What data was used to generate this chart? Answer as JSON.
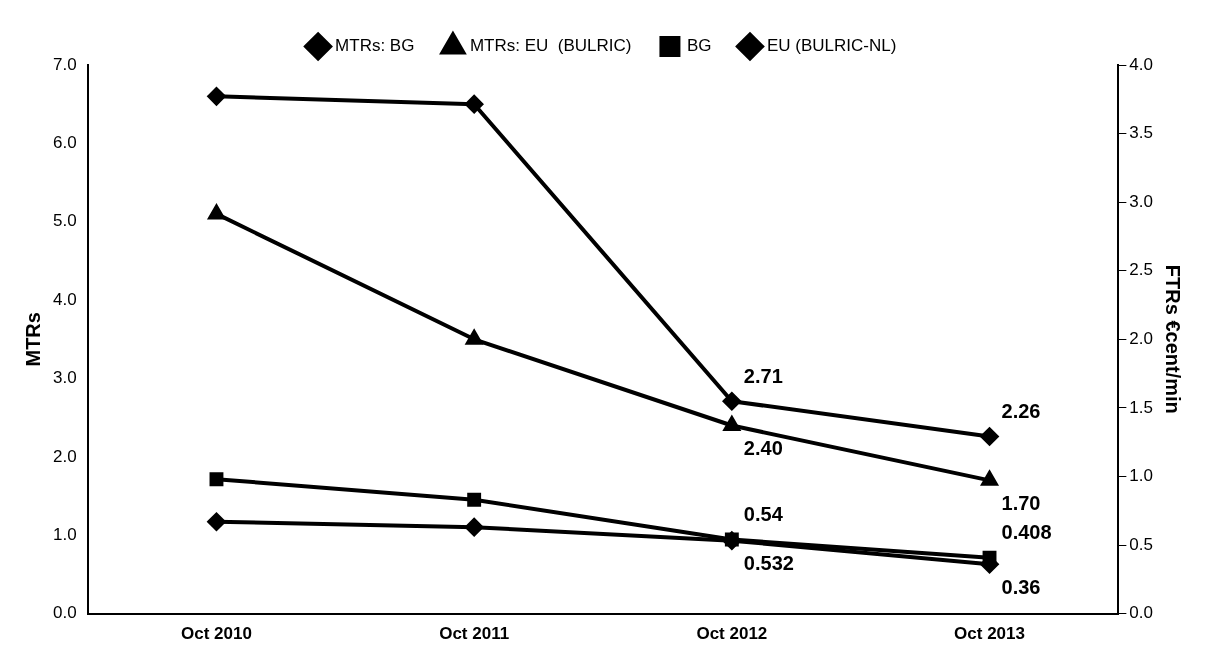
{
  "chart_data": {
    "type": "line",
    "categories": [
      "Oct 2010",
      "Oct 2011",
      "Oct 2012",
      "Oct 2013"
    ],
    "ylabel": "MTRs",
    "y2label": "FTRs €cent/min",
    "ylim": [
      0,
      7
    ],
    "yticks": [
      {
        "value": 0,
        "label": "0.0"
      },
      {
        "value": 1,
        "label": "1.0"
      },
      {
        "value": 2,
        "label": "2.0"
      },
      {
        "value": 3,
        "label": "3.0"
      },
      {
        "value": 4,
        "label": "4.0"
      },
      {
        "value": 5,
        "label": "5.0"
      },
      {
        "value": 6,
        "label": "6.0"
      },
      {
        "value": 7,
        "label": "7.0"
      }
    ],
    "y2lim": [
      0,
      4
    ],
    "y2ticks": [
      {
        "value": 0,
        "label": "0.0"
      },
      0.5,
      {
        "value": 1,
        "label": "1.0"
      },
      1.5,
      {
        "value": 2,
        "label": "2.0"
      },
      2.5,
      {
        "value": 3,
        "label": "3.0"
      },
      3.5,
      {
        "value": 4,
        "label": "4.0"
      }
    ],
    "legend": "top",
    "grid": false,
    "series": [
      {
        "name": "MTRs: BG",
        "color": "#000000",
        "marker": "diamond",
        "values": [
          6.6,
          6.5,
          2.71,
          2.26
        ],
        "value_labels": [
          null,
          null,
          "2.71",
          "2.26"
        ]
      },
      {
        "name": "MTRs: EU  (BULRIC)",
        "color": "#000000",
        "marker": "triangle",
        "values": [
          5.1,
          3.5,
          2.4,
          1.7
        ],
        "value_labels": [
          null,
          null,
          "2.40",
          "1.70"
        ]
      },
      {
        "name": "BG",
        "color": "#000000",
        "marker": "square",
        "axis": "y2",
        "values": [
          0.98,
          0.83,
          0.54,
          0.408
        ],
        "value_labels": [
          null,
          null,
          "0.54",
          "0.408"
        ]
      },
      {
        "name": "EU (BULRIC-NL)",
        "color": "#000000",
        "marker": "diamond",
        "axis": "y2",
        "values": [
          0.67,
          0.63,
          0.532,
          0.36
        ],
        "value_labels": [
          null,
          null,
          "0.532",
          "0.36"
        ]
      }
    ]
  }
}
